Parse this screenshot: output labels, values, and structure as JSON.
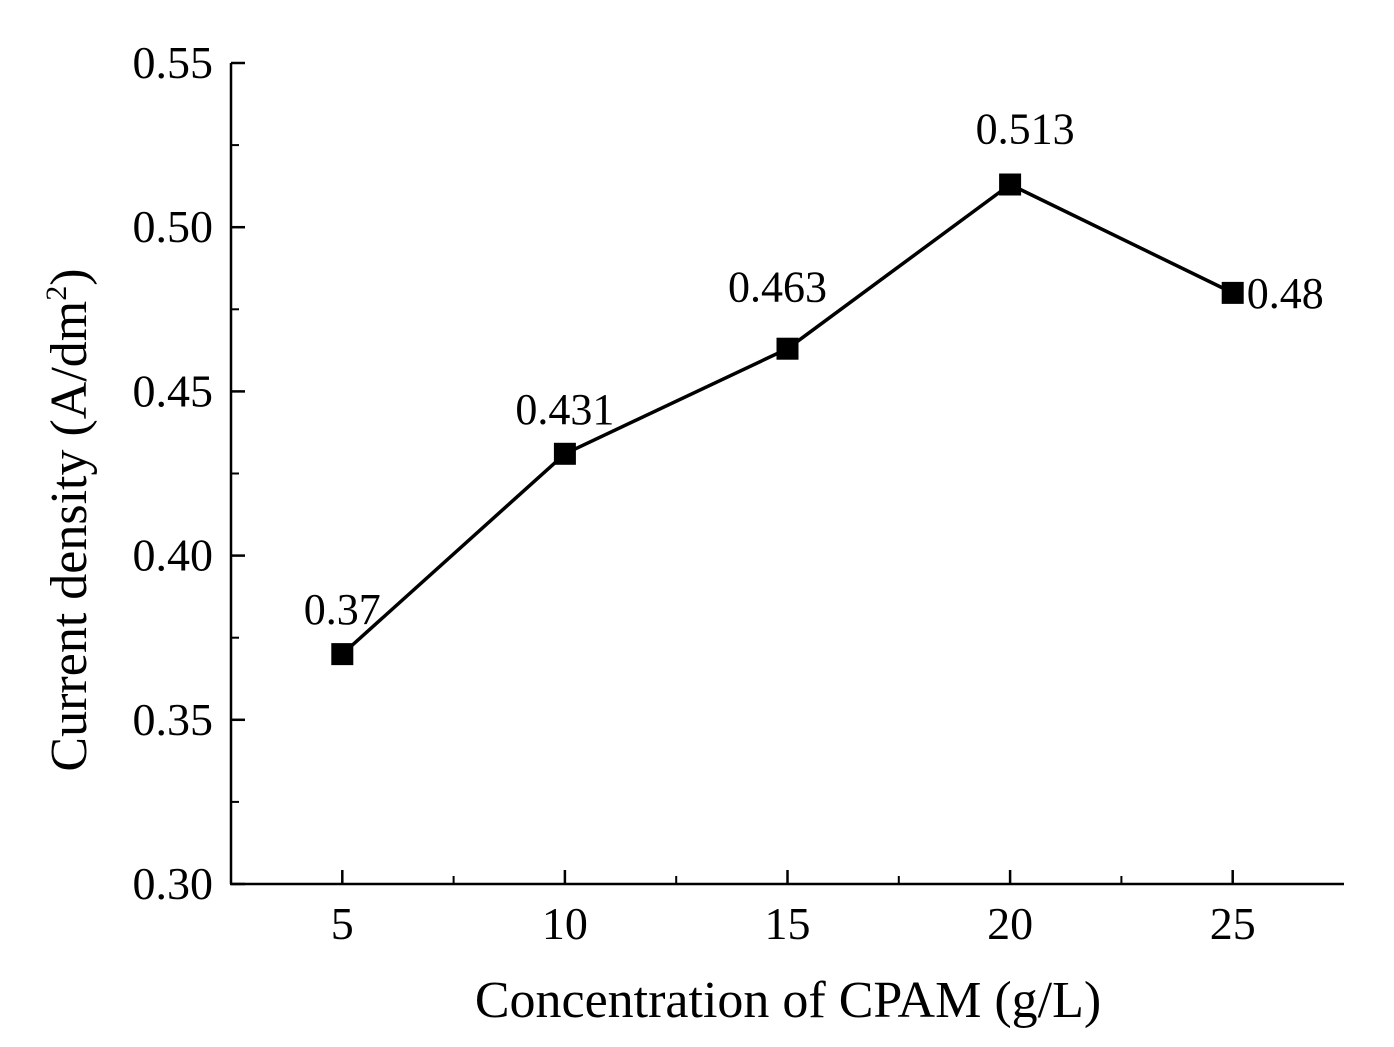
{
  "chart_data": {
    "type": "line",
    "title": "",
    "xlabel": "Concentration of CPAM (g/L)",
    "ylabel": {
      "main": "Current density (A/dm",
      "superscript": "2",
      "close": ")"
    },
    "x": [
      5,
      10,
      15,
      20,
      25
    ],
    "series": [
      {
        "name": "Current density",
        "values": [
          0.37,
          0.431,
          0.463,
          0.513,
          0.48
        ],
        "labels": [
          "0.37",
          "0.431",
          "0.463",
          "0.513",
          "0.48"
        ],
        "marker": "square",
        "color": "#000000"
      }
    ],
    "xlim": [
      2.5,
      27.5
    ],
    "ylim": [
      0.3,
      0.55
    ],
    "xticks": [
      "5",
      "10",
      "15",
      "20",
      "25"
    ],
    "yticks": [
      "0.30",
      "0.35",
      "0.40",
      "0.45",
      "0.50",
      "0.55"
    ],
    "grid": false,
    "legend": "none"
  }
}
